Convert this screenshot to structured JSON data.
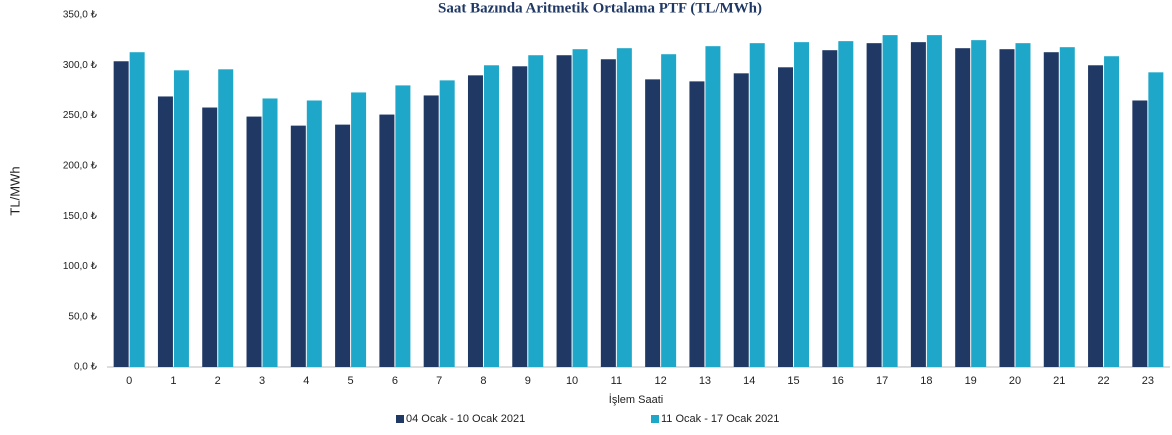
{
  "chart_data": {
    "type": "bar",
    "title": "Saat Bazında Aritmetik Ortalama PTF (TL/MWh)",
    "y_label": "TL/MWh",
    "x_label": "İşlem Saati",
    "categories": [
      "0",
      "1",
      "2",
      "3",
      "4",
      "5",
      "6",
      "7",
      "8",
      "9",
      "10",
      "11",
      "12",
      "13",
      "14",
      "15",
      "16",
      "17",
      "18",
      "19",
      "20",
      "21",
      "22",
      "23"
    ],
    "series": [
      {
        "name": "04 Ocak - 10 Ocak 2021",
        "color": "#1f3864",
        "values": [
          304,
          269,
          258,
          249,
          240,
          241,
          251,
          270,
          290,
          299,
          310,
          306,
          286,
          284,
          292,
          298,
          315,
          322,
          323,
          317,
          316,
          313,
          300,
          265
        ]
      },
      {
        "name": "11 Ocak - 17 Ocak 2021",
        "color": "#1ea7c8",
        "values": [
          313,
          295,
          296,
          267,
          265,
          273,
          280,
          285,
          300,
          310,
          316,
          317,
          311,
          319,
          322,
          323,
          324,
          330,
          330,
          325,
          322,
          318,
          309,
          293
        ]
      }
    ],
    "ylim": [
      0,
      350
    ],
    "yticks": [
      {
        "value": 0,
        "label": "0,0 ₺"
      },
      {
        "value": 50,
        "label": "50,0 ₺"
      },
      {
        "value": 100,
        "label": "100,0 ₺"
      },
      {
        "value": 150,
        "label": "150,0 ₺"
      },
      {
        "value": 200,
        "label": "200,0 ₺"
      },
      {
        "value": 250,
        "label": "250,0 ₺"
      },
      {
        "value": 300,
        "label": "300,0 ₺"
      },
      {
        "value": 350,
        "label": "350,0 ₺"
      }
    ],
    "grid": false,
    "legend": "bottom"
  }
}
